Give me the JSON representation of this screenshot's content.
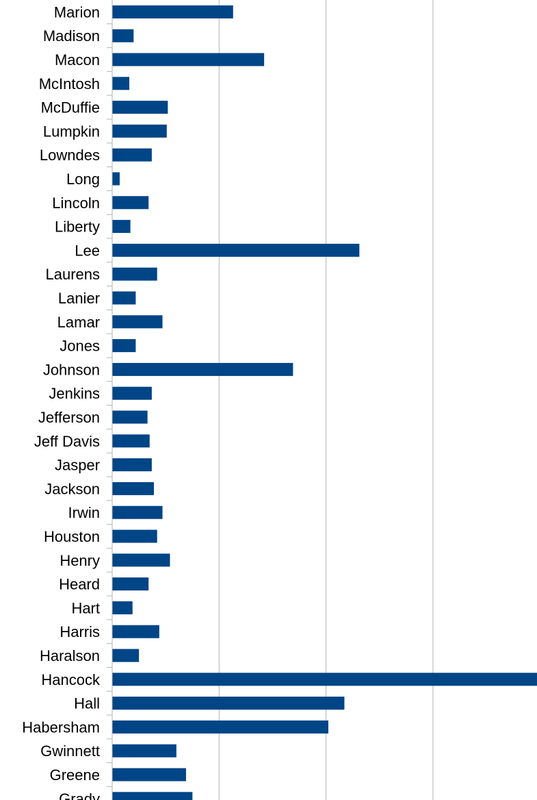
{
  "chart_data": {
    "type": "bar",
    "orientation": "horizontal",
    "categories": [
      "Marion",
      "Madison",
      "Macon",
      "McIntosh",
      "McDuffie",
      "Lumpkin",
      "Lowndes",
      "Long",
      "Lincoln",
      "Liberty",
      "Lee",
      "Laurens",
      "Lanier",
      "Lamar",
      "Jones",
      "Johnson",
      "Jenkins",
      "Jefferson",
      "Jeff Davis",
      "Jasper",
      "Jackson",
      "Irwin",
      "Houston",
      "Henry",
      "Heard",
      "Hart",
      "Harris",
      "Haralson",
      "Hancock",
      "Hall",
      "Habersham",
      "Gwinnett",
      "Greene",
      "Grady"
    ],
    "values": [
      1.13,
      0.2,
      1.42,
      0.16,
      0.52,
      0.51,
      0.37,
      0.07,
      0.34,
      0.17,
      2.31,
      0.42,
      0.22,
      0.47,
      0.22,
      1.69,
      0.37,
      0.33,
      0.35,
      0.37,
      0.39,
      0.47,
      0.42,
      0.54,
      0.34,
      0.19,
      0.44,
      0.25,
      3.97,
      2.17,
      2.02,
      0.6,
      0.69,
      0.75
    ],
    "xlim": [
      0,
      3.97
    ],
    "grid": true,
    "colors": {
      "bar": "#004586",
      "grid": "#b3b3b3",
      "axis": "#b3b3b3"
    }
  }
}
